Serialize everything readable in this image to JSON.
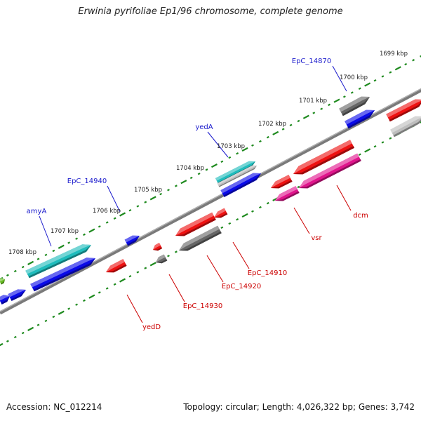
{
  "title": "Erwinia pyrifoliae Ep1/96 chromosome, complete genome",
  "footer": {
    "accession": "Accession: NC_012214",
    "topology": "Topology: circular; Length: 4,026,322 bp; Genes: 3,742"
  },
  "ticks": [
    {
      "kbp": 1699,
      "label": "1699 kbp"
    },
    {
      "kbp": 1700,
      "label": "1700 kbp"
    },
    {
      "kbp": 1701,
      "label": "1701 kbp"
    },
    {
      "kbp": 1702,
      "label": "1702 kbp"
    },
    {
      "kbp": 1703,
      "label": "1703 kbp"
    },
    {
      "kbp": 1704,
      "label": "1704 kbp"
    },
    {
      "kbp": 1705,
      "label": "1705 kbp"
    },
    {
      "kbp": 1706,
      "label": "1706 kbp"
    },
    {
      "kbp": 1707,
      "label": "1707 kbp"
    },
    {
      "kbp": 1708,
      "label": "1708 kbp"
    }
  ],
  "colors": {
    "forward_label": "#1a1acc",
    "reverse_label": "#cc0000",
    "tick": "#1e8a1e",
    "backbone": "#7a7a7a",
    "cyan": "#1fbcbc",
    "blue": "#0a0ae8",
    "gray": "#666666",
    "lightgray": "#bdbdbd",
    "red": "#ee1111",
    "magenta": "#e0148c",
    "green": "#66bb22"
  },
  "gene_labels": [
    {
      "name": "EpC_14870",
      "strand": "forward"
    },
    {
      "name": "yedA",
      "strand": "forward"
    },
    {
      "name": "EpC_14940",
      "strand": "forward"
    },
    {
      "name": "amyA",
      "strand": "forward"
    },
    {
      "name": "dcm",
      "strand": "reverse"
    },
    {
      "name": "vsr",
      "strand": "reverse"
    },
    {
      "name": "EpC_14910",
      "strand": "reverse"
    },
    {
      "name": "EpC_14920",
      "strand": "reverse"
    },
    {
      "name": "EpC_14930",
      "strand": "reverse"
    },
    {
      "name": "yedD",
      "strand": "reverse"
    }
  ]
}
